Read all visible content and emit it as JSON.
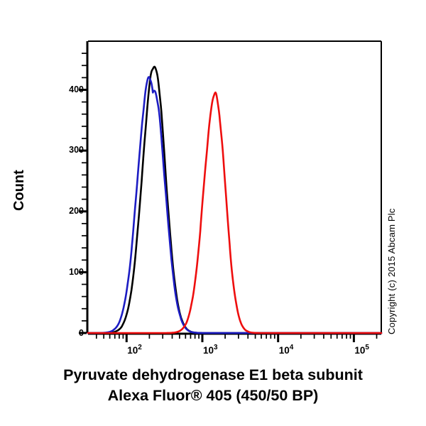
{
  "y_axis_title": "Count",
  "copyright_notice": "Copyright (c) 2015 Abcam Plc",
  "title": {
    "line1": "Pyruvate dehydrogenase E1 beta subunit",
    "line2": "Alexa Fluor® 405 (450/50 BP)"
  },
  "y_tick_labels": [
    "0",
    "100",
    "200",
    "300",
    "400"
  ],
  "x_tick_labels": [
    {
      "base": "10",
      "exp": "2"
    },
    {
      "base": "10",
      "exp": "3"
    },
    {
      "base": "10",
      "exp": "4"
    },
    {
      "base": "10",
      "exp": "5"
    }
  ],
  "chart_data": {
    "type": "line",
    "subtype": "flow-cytometry-histogram-overlay",
    "title": "Pyruvate dehydrogenase E1 beta subunit",
    "xlabel": "Alexa Fluor® 405 (450/50 BP)",
    "ylabel": "Count",
    "x_scale": "log10",
    "xlim": [
      31,
      230000
    ],
    "ylim": [
      0,
      480
    ],
    "grid": false,
    "legend": "none",
    "x_major_ticks": [
      100,
      1000,
      10000,
      100000
    ],
    "y_major_ticks": [
      0,
      100,
      200,
      300,
      400
    ],
    "y_minor_step": 20,
    "x_minor_ticks": "log decades 2-9 per decade",
    "background_color": "#ffffff",
    "frame_color": "#000000",
    "series": [
      {
        "name": "black-curve",
        "color": "#000000",
        "peak_x": 232,
        "peak_count": 440,
        "components": [
          {
            "center_log": 2.366,
            "sigma_left": 0.158,
            "sigma_right": 0.148,
            "amplitude": 440
          }
        ]
      },
      {
        "name": "blue-curve",
        "color": "#1c1cc3",
        "peak_x": 202,
        "peak_count": 420,
        "components": [
          {
            "center_log": 2.305,
            "sigma_left": 0.16,
            "sigma_right": 0.125,
            "amplitude": 420
          },
          {
            "center_log": 2.36,
            "sigma_left": 0.09,
            "sigma_right": 0.15,
            "amplitude": 400
          }
        ]
      },
      {
        "name": "red-curve",
        "color": "#ee0e0e",
        "peak_x": 1480,
        "peak_count": 392,
        "components": [
          {
            "center_log": 3.17,
            "sigma_left": 0.152,
            "sigma_right": 0.135,
            "amplitude": 392
          }
        ]
      }
    ]
  }
}
